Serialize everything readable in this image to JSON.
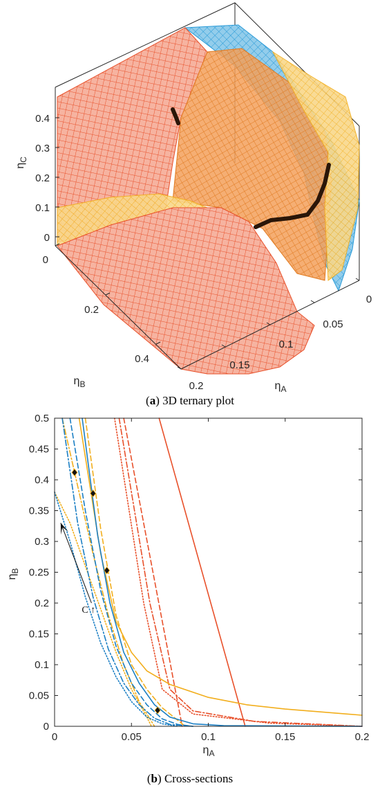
{
  "chart_data": [
    {
      "panel": "a",
      "type": "surface3d",
      "caption": {
        "label": "a",
        "text": " 3D ternary plot"
      },
      "axes": {
        "x": {
          "label": "η",
          "sub": "A",
          "ticks": [
            "0",
            "0.05",
            "0.1",
            "0.15",
            "0.2"
          ],
          "range": [
            0,
            0.2
          ]
        },
        "y": {
          "label": "η",
          "sub": "B",
          "ticks": [
            "0",
            "0.2",
            "0.4"
          ],
          "range": [
            0,
            0.5
          ]
        },
        "z": {
          "label": "η",
          "sub": "C",
          "ticks": [
            "0",
            "0.1",
            "0.2",
            "0.3",
            "0.4"
          ],
          "range": [
            0,
            0.5
          ]
        }
      },
      "surfaces": [
        {
          "color": "#E8502A",
          "fill": "#F6B3A0"
        },
        {
          "color": "#F2AE1C",
          "fill": "#F9D88A"
        },
        {
          "color": "#2A9BD8",
          "fill": "#93CDEB"
        }
      ],
      "box_color": "#262626",
      "marker_color": "#2a1608"
    },
    {
      "panel": "b",
      "type": "line",
      "caption": {
        "label": "b",
        "text": " Cross-sections"
      },
      "xlabel": {
        "main": "η",
        "sub": "A"
      },
      "ylabel": {
        "main": "η",
        "sub": "B"
      },
      "xlim": [
        0,
        0.2
      ],
      "ylim": [
        0,
        0.5
      ],
      "xticks": [
        "0",
        "0.05",
        "0.1",
        "0.15",
        "0.2"
      ],
      "yticks": [
        "0",
        "0.05",
        "0.1",
        "0.15",
        "0.2",
        "0.25",
        "0.3",
        "0.35",
        "0.4",
        "0.45",
        "0.5"
      ],
      "annotation": {
        "text": "C ↑",
        "arrow_from": [
          0.024,
          0.2
        ],
        "arrow_to": [
          0.004,
          0.33
        ]
      },
      "series": [
        {
          "color": "#E8502A",
          "style": "solid",
          "x": [
            0.068,
            0.124
          ],
          "y": [
            0.5,
            0.0
          ]
        },
        {
          "color": "#E8502A",
          "style": "dashed",
          "x": [
            0.045,
            0.083
          ],
          "y": [
            0.5,
            0.0
          ]
        },
        {
          "color": "#E8502A",
          "style": "dashdot",
          "x": [
            0.042,
            0.062,
            0.075,
            0.09,
            0.13,
            0.2
          ],
          "y": [
            0.5,
            0.2,
            0.06,
            0.025,
            0.008,
            0.0
          ]
        },
        {
          "color": "#E8502A",
          "style": "dotted",
          "x": [
            0.039,
            0.058,
            0.07,
            0.09,
            0.14,
            0.2
          ],
          "y": [
            0.5,
            0.2,
            0.06,
            0.02,
            0.005,
            0.0
          ]
        },
        {
          "color": "#F2AE1C",
          "style": "solid",
          "x": [
            0.016,
            0.03,
            0.04,
            0.05,
            0.06,
            0.075,
            0.1,
            0.125,
            0.15,
            0.2
          ],
          "y": [
            0.5,
            0.28,
            0.17,
            0.12,
            0.09,
            0.068,
            0.047,
            0.035,
            0.028,
            0.018
          ]
        },
        {
          "color": "#F2AE1C",
          "style": "dashed",
          "x": [
            0.02,
            0.03,
            0.04,
            0.05,
            0.06,
            0.07,
            0.085
          ],
          "y": [
            0.5,
            0.32,
            0.18,
            0.1,
            0.06,
            0.03,
            0.0
          ]
        },
        {
          "color": "#F2AE1C",
          "style": "dashdot",
          "x": [
            0.005,
            0.015,
            0.025,
            0.035,
            0.045,
            0.055,
            0.065
          ],
          "y": [
            0.5,
            0.39,
            0.28,
            0.18,
            0.1,
            0.04,
            0.0
          ]
        },
        {
          "color": "#F2AE1C",
          "style": "dotted",
          "x": [
            0.0,
            0.01,
            0.02,
            0.03,
            0.04,
            0.05,
            0.06,
            0.063
          ],
          "y": [
            0.38,
            0.33,
            0.26,
            0.19,
            0.12,
            0.06,
            0.015,
            0.0
          ]
        },
        {
          "color": "#1B7FC4",
          "style": "solid",
          "x": [
            0.018,
            0.028,
            0.036,
            0.045,
            0.055,
            0.065,
            0.075,
            0.09,
            0.11,
            0.2
          ],
          "y": [
            0.5,
            0.31,
            0.2,
            0.12,
            0.07,
            0.035,
            0.015,
            0.004,
            0.001,
            0.0
          ]
        },
        {
          "color": "#1B7FC4",
          "style": "dashed",
          "x": [
            0.01,
            0.02,
            0.03,
            0.04,
            0.05,
            0.06,
            0.07,
            0.08,
            0.09
          ],
          "y": [
            0.5,
            0.35,
            0.22,
            0.13,
            0.07,
            0.035,
            0.012,
            0.003,
            0.0
          ]
        },
        {
          "color": "#1B7FC4",
          "style": "dashdot",
          "x": [
            0.005,
            0.015,
            0.025,
            0.035,
            0.045,
            0.055,
            0.065,
            0.075,
            0.09
          ],
          "y": [
            0.5,
            0.33,
            0.21,
            0.125,
            0.07,
            0.035,
            0.013,
            0.003,
            0.0
          ]
        },
        {
          "color": "#1B7FC4",
          "style": "dotted",
          "x": [
            0.0,
            0.01,
            0.02,
            0.03,
            0.04,
            0.05,
            0.06,
            0.07,
            0.08
          ],
          "y": [
            0.38,
            0.3,
            0.21,
            0.135,
            0.08,
            0.04,
            0.015,
            0.004,
            0.0
          ]
        }
      ],
      "markers": {
        "x": [
          0.013,
          0.025,
          0.034,
          0.067
        ],
        "y": [
          0.412,
          0.378,
          0.253,
          0.026
        ]
      }
    }
  ]
}
